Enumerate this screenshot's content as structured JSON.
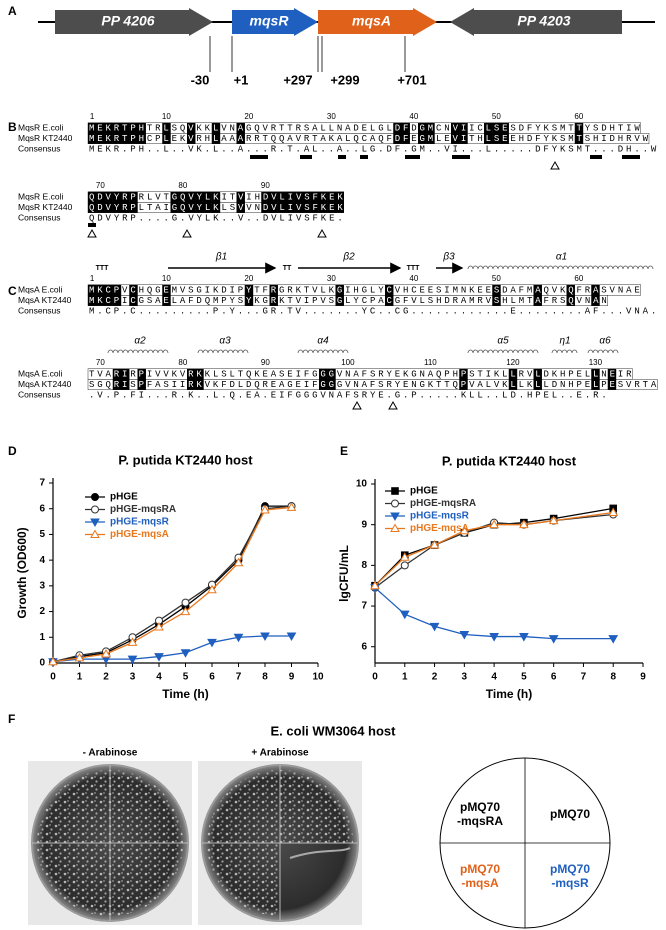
{
  "panel_labels": [
    "A",
    "B",
    "C",
    "D",
    "E",
    "F"
  ],
  "gene_map": {
    "genes": [
      {
        "label": "PP 4206",
        "color": "#4d4d4d",
        "direction": "right"
      },
      {
        "label": "mqsR",
        "color": "#1f5fbf",
        "direction": "right"
      },
      {
        "label": "mqsA",
        "color": "#e0621a",
        "direction": "right"
      },
      {
        "label": "PP 4203",
        "color": "#4d4d4d",
        "direction": "left"
      }
    ],
    "positions": [
      "-30",
      "+1",
      "+297",
      "+299",
      "+701"
    ]
  },
  "alignment_b": {
    "blocks": [
      {
        "numbers": [
          1,
          10,
          20,
          30,
          40,
          50,
          60
        ],
        "rows": [
          {
            "name": "MqsR E.coli",
            "sequence": "MEKRTPHTRLSQVKKLVNAGQVRTTRSALLNADELGLDFDGMCNVIICLSESDFYKSMTTYSDHTIW"
          },
          {
            "name": "MqsR KT2440",
            "sequence": "MEKRTPHCPLEKVRHLAAARRTQQAVRTAKALQCAQFDFEGMLEVITHLSEEHDFYKSMTSHIDHRVW"
          }
        ],
        "consensus_label": "Consensus",
        "consensus": "MEKR.PH..L..VK.L..A...R.T.AL..A..LG.DF.GM..VI...L.....DFYKSMT...DH..W"
      },
      {
        "numbers": [
          70,
          80,
          90
        ],
        "rows": [
          {
            "name": "MqsR E.coli",
            "sequence": "QDVYRPRLVTGQVYLKITVIHDVLIVSFKEK"
          },
          {
            "name": "MqsR KT2440",
            "sequence": "QDVYRPLTAIGQVYLKLSVVNDVLIVSFKEK"
          }
        ],
        "consensus_label": "Consensus",
        "consensus": "QDVYRP....G.VYLK..V..DVLIVSFKE."
      }
    ]
  },
  "alignment_c": {
    "blocks": [
      {
        "structure": [
          {
            "label": "TTT",
            "kind": "turn"
          },
          {
            "label": "β1",
            "kind": "strand"
          },
          {
            "label": "TT",
            "kind": "turn"
          },
          {
            "label": "β2",
            "kind": "strand"
          },
          {
            "label": "TTT",
            "kind": "turn"
          },
          {
            "label": "β3",
            "kind": "strand"
          },
          {
            "label": "α1",
            "kind": "helix"
          }
        ],
        "numbers": [
          1,
          10,
          20,
          30,
          40,
          50,
          60
        ],
        "rows": [
          {
            "name": "MqsA E.coli",
            "sequence": "MKCPVCHQGEMVSGIKDIPYTFRGRKTVLKGIHGLYCVHCEESIMNKEESDAFMAQVKQFRASVNAE"
          },
          {
            "name": "MqsA KT2440",
            "sequence": "MKCPICGSAELAFDQMPYSYKGRKTVIPVSGLYCPACGFVLSHDRAMRVSHLMTAFRSQVNAN"
          }
        ],
        "consensus_label": "Consensus",
        "consensus": "M.CP.C.........P.Y...GR.TV.......YC..CG............E........AF...VNA."
      },
      {
        "structure": [
          {
            "label": "α2",
            "kind": "helix"
          },
          {
            "label": "α3",
            "kind": "helix"
          },
          {
            "label": "α4",
            "kind": "helix"
          },
          {
            "label": "α5",
            "kind": "helix"
          },
          {
            "label": "η1",
            "kind": "helix"
          },
          {
            "label": "α6",
            "kind": "helix"
          }
        ],
        "numbers": [
          70,
          80,
          90,
          100,
          110,
          120,
          130
        ],
        "rows": [
          {
            "name": "MqsA E.coli",
            "sequence": "TVARIRPIVVKVRKKLSLTQKEASEIFGGGVNAFSRYEKGNAQPHPSTIKLLRVLDKHPELLNEIR"
          },
          {
            "name": "MqsA KT2440",
            "sequence": "SGQRISPFASIIRKVKFDLDQREAGEIFGGGVNAFSRYENGKTTQPVALVKLLKLLDNHPELPESVRTA"
          }
        ],
        "consensus_label": "Consensus",
        "consensus": ".V.P.FI...R.K..L.Q.EA.EIFGGGVNAFSRYE.G.P.....KLL..LD.HPEL..E.R."
      }
    ]
  },
  "chart_data": [
    {
      "type": "line",
      "title": "P. putida KT2440 host",
      "x_label": "Time (h)",
      "y_label": "Growth (OD600)",
      "x": [
        0,
        1,
        2,
        3,
        4,
        5,
        6,
        7,
        8,
        9
      ],
      "xlim": [
        0,
        10
      ],
      "xticks": [
        0,
        1,
        2,
        3,
        4,
        5,
        6,
        7,
        8,
        9,
        10
      ],
      "ylim": [
        0,
        7
      ],
      "yticks": [
        0,
        1,
        2,
        3,
        4,
        5,
        6,
        7
      ],
      "series": [
        {
          "name": "pHGE",
          "color": "#000000",
          "marker": "circle",
          "filled": true,
          "values": [
            0.05,
            0.25,
            0.4,
            0.9,
            1.5,
            2.2,
            3.0,
            4.0,
            6.1,
            6.1
          ]
        },
        {
          "name": "pHGE-mqsRA",
          "color": "#333333",
          "marker": "circle",
          "filled": false,
          "values": [
            0.05,
            0.3,
            0.45,
            1.0,
            1.65,
            2.35,
            3.05,
            4.1,
            6.0,
            6.1
          ]
        },
        {
          "name": "pHGE-mqsR",
          "color": "#1f5fbf",
          "marker": "triangle-down",
          "filled": true,
          "values": [
            0.05,
            0.15,
            0.15,
            0.15,
            0.25,
            0.4,
            0.8,
            1.0,
            1.05,
            1.05
          ]
        },
        {
          "name": "pHGE-mqsA",
          "color": "#e8781e",
          "marker": "triangle-up",
          "filled": false,
          "values": [
            0.05,
            0.2,
            0.35,
            0.8,
            1.4,
            2.0,
            2.85,
            3.9,
            5.95,
            6.05
          ]
        }
      ]
    },
    {
      "type": "line",
      "title": "P. putida KT2440 host",
      "x_label": "Time (h)",
      "y_label": "lgCFU/mL",
      "x": [
        0,
        1,
        2,
        3,
        4,
        5,
        6,
        8
      ],
      "xlim": [
        0,
        9
      ],
      "xticks": [
        0,
        1,
        2,
        3,
        4,
        5,
        6,
        7,
        8,
        9
      ],
      "ylim": [
        5.6,
        10
      ],
      "yticks": [
        6,
        7,
        8,
        9,
        10
      ],
      "series": [
        {
          "name": "pHGE",
          "color": "#000000",
          "marker": "square",
          "filled": true,
          "values": [
            7.5,
            8.25,
            8.5,
            8.8,
            9.0,
            9.05,
            9.15,
            9.4
          ]
        },
        {
          "name": "pHGE-mqsRA",
          "color": "#333333",
          "marker": "circle",
          "filled": false,
          "values": [
            7.45,
            8.0,
            8.5,
            8.8,
            9.05,
            9.0,
            9.1,
            9.25
          ]
        },
        {
          "name": "pHGE-mqsR",
          "color": "#1f5fbf",
          "marker": "triangle-down",
          "filled": true,
          "values": [
            7.45,
            6.8,
            6.5,
            6.3,
            6.25,
            6.25,
            6.2,
            6.2
          ]
        },
        {
          "name": "pHGE-mqsA",
          "color": "#e8781e",
          "marker": "triangle-up",
          "filled": false,
          "values": [
            7.5,
            8.2,
            8.5,
            8.85,
            9.0,
            9.0,
            9.1,
            9.3
          ]
        }
      ]
    }
  ],
  "panel_f": {
    "title": "E. coli WM3064 host",
    "plates": [
      "- Arabinose",
      "+ Arabinose"
    ],
    "key": [
      {
        "lines": [
          "pMQ70",
          "-mqsRA"
        ],
        "color": "#000000"
      },
      {
        "lines": [
          "pMQ70"
        ],
        "color": "#000000"
      },
      {
        "lines": [
          "pMQ70",
          "-mqsA"
        ],
        "color": "#e0621a"
      },
      {
        "lines": [
          "pMQ70",
          "-mqsR"
        ],
        "color": "#1f5fbf"
      }
    ]
  }
}
